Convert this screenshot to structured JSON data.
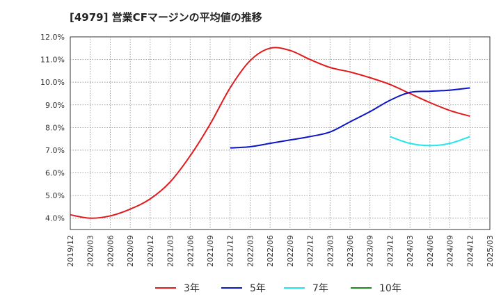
{
  "chart_data": {
    "type": "line",
    "title": "[4979]  営業CFマージンの平均値の推移",
    "xlabel": "",
    "ylabel": "",
    "x_ticks": [
      "2019/12",
      "2020/03",
      "2020/06",
      "2020/09",
      "2020/12",
      "2021/03",
      "2021/06",
      "2021/09",
      "2021/12",
      "2022/03",
      "2022/06",
      "2022/09",
      "2022/12",
      "2023/03",
      "2023/06",
      "2023/09",
      "2023/12",
      "2024/03",
      "2024/06",
      "2024/09",
      "2024/12",
      "2025/03"
    ],
    "y_ticks": [
      4.0,
      5.0,
      6.0,
      7.0,
      8.0,
      9.0,
      10.0,
      11.0,
      12.0
    ],
    "y_tick_labels": [
      "4.0%",
      "5.0%",
      "6.0%",
      "7.0%",
      "8.0%",
      "9.0%",
      "10.0%",
      "11.0%",
      "12.0%"
    ],
    "ylim": [
      3.5,
      12.0
    ],
    "grid": true,
    "legend_position": "bottom",
    "series": [
      {
        "name": "3年",
        "color": "#e31a1c",
        "x": [
          "2019/12",
          "2020/03",
          "2020/06",
          "2020/09",
          "2020/12",
          "2021/03",
          "2021/06",
          "2021/09",
          "2021/12",
          "2022/03",
          "2022/06",
          "2022/09",
          "2022/12",
          "2023/03",
          "2023/06",
          "2023/09",
          "2023/12",
          "2024/03",
          "2024/06",
          "2024/09",
          "2024/12"
        ],
        "values": [
          4.15,
          4.0,
          4.1,
          4.4,
          4.85,
          5.6,
          6.75,
          8.15,
          9.75,
          10.95,
          11.5,
          11.4,
          11.0,
          10.65,
          10.45,
          10.2,
          9.9,
          9.5,
          9.1,
          8.75,
          8.5
        ]
      },
      {
        "name": "5年",
        "color": "#0a14c8",
        "x": [
          "2021/12",
          "2022/03",
          "2022/06",
          "2022/09",
          "2022/12",
          "2023/03",
          "2023/06",
          "2023/09",
          "2023/12",
          "2024/03",
          "2024/06",
          "2024/09",
          "2024/12"
        ],
        "values": [
          7.1,
          7.15,
          7.3,
          7.45,
          7.6,
          7.8,
          8.25,
          8.7,
          9.2,
          9.55,
          9.6,
          9.65,
          9.75
        ]
      },
      {
        "name": "7年",
        "color": "#1ee8ee",
        "x": [
          "2023/12",
          "2024/03",
          "2024/06",
          "2024/09",
          "2024/12"
        ],
        "values": [
          7.6,
          7.3,
          7.2,
          7.3,
          7.6
        ]
      },
      {
        "name": "10年",
        "color": "#1a8a1a",
        "x": [],
        "values": []
      }
    ]
  }
}
